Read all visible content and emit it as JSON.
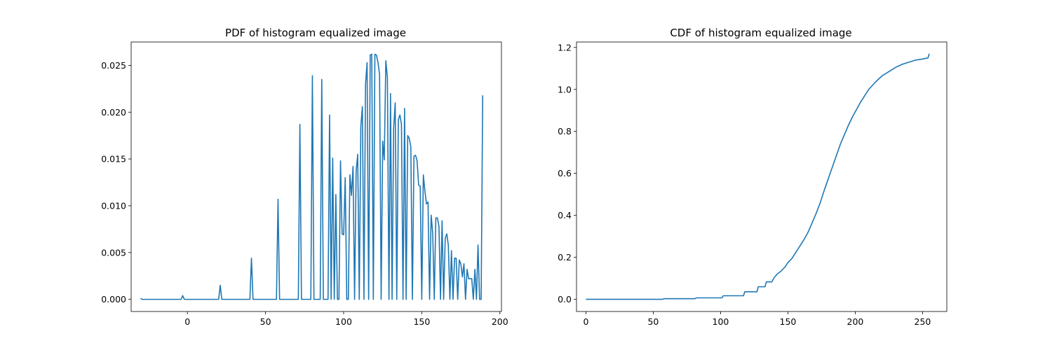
{
  "chart_data": [
    {
      "type": "line",
      "title": "PDF of histogram equalized image",
      "xlabel": "",
      "ylabel": "",
      "xlim": [
        -36,
        201
      ],
      "ylim": [
        -0.0013,
        0.0275
      ],
      "xticks": [
        0,
        50,
        100,
        150,
        200
      ],
      "xtick_labels": [
        "0",
        "50",
        "100",
        "150",
        "200"
      ],
      "yticks": [
        0.0,
        0.005,
        0.01,
        0.015,
        0.02,
        0.025
      ],
      "ytick_labels": [
        "0.000",
        "0.005",
        "0.010",
        "0.015",
        "0.020",
        "0.025"
      ],
      "grid": false,
      "color": "#1f77b4",
      "series": [
        {
          "points": [
            [
              -30,
              0.0001
            ],
            [
              -29,
              0.0
            ],
            [
              -4,
              0.0
            ],
            [
              -3,
              0.0004
            ],
            [
              -2,
              0.0
            ],
            [
              20,
              0.0
            ],
            [
              21,
              0.0015
            ],
            [
              22,
              0.0
            ],
            [
              40,
              0.0
            ],
            [
              41,
              0.0044
            ],
            [
              42,
              0.0
            ],
            [
              57,
              0.0
            ],
            [
              58,
              0.0107
            ],
            [
              59,
              0.0
            ],
            [
              71,
              0.0
            ],
            [
              72,
              0.0187
            ],
            [
              73,
              0.0
            ],
            [
              79,
              0.0
            ],
            [
              80,
              0.0239
            ],
            [
              81,
              0.0
            ],
            [
              85,
              0.0
            ],
            [
              86,
              0.0235
            ],
            [
              87,
              0.0
            ],
            [
              90,
              0.0
            ],
            [
              91,
              0.0197
            ],
            [
              92,
              0.0
            ],
            [
              93,
              0.0151
            ],
            [
              94,
              0.0
            ],
            [
              95,
              0.0112
            ],
            [
              96,
              0.0
            ],
            [
              97,
              0.0
            ],
            [
              98,
              0.0148
            ],
            [
              99,
              0.007
            ],
            [
              100,
              0.0069
            ],
            [
              101,
              0.013
            ],
            [
              102,
              0.0
            ],
            [
              103,
              0.0
            ],
            [
              104,
              0.0133
            ],
            [
              105,
              0.0111
            ],
            [
              106,
              0.0142
            ],
            [
              107,
              0.0
            ],
            [
              108,
              0.0137
            ],
            [
              109,
              0.0155
            ],
            [
              110,
              0.0
            ],
            [
              111,
              0.0185
            ],
            [
              112,
              0.0206
            ],
            [
              113,
              0.0
            ],
            [
              114,
              0.023
            ],
            [
              115,
              0.0253
            ],
            [
              116,
              0.0
            ],
            [
              117,
              0.0261
            ],
            [
              118,
              0.0262
            ],
            [
              119,
              0.0
            ],
            [
              120,
              0.0262
            ],
            [
              121,
              0.0261
            ],
            [
              122,
              0.0253
            ],
            [
              123,
              0.024
            ],
            [
              124,
              0.0
            ],
            [
              125,
              0.0169
            ],
            [
              126,
              0.0149
            ],
            [
              127,
              0.0255
            ],
            [
              128,
              0.0237
            ],
            [
              129,
              0.0
            ],
            [
              130,
              0.022
            ],
            [
              131,
              0.0
            ],
            [
              132,
              0.0183
            ],
            [
              133,
              0.021
            ],
            [
              134,
              0.0
            ],
            [
              135,
              0.0192
            ],
            [
              136,
              0.0197
            ],
            [
              137,
              0.0187
            ],
            [
              138,
              0.0
            ],
            [
              139,
              0.0204
            ],
            [
              140,
              0.0
            ],
            [
              141,
              0.0175
            ],
            [
              142,
              0.0172
            ],
            [
              143,
              0.0163
            ],
            [
              144,
              0.0
            ],
            [
              145,
              0.0153
            ],
            [
              146,
              0.0154
            ],
            [
              147,
              0.0148
            ],
            [
              148,
              0.0122
            ],
            [
              149,
              0.0121
            ],
            [
              150,
              0.0
            ],
            [
              151,
              0.0133
            ],
            [
              152,
              0.0116
            ],
            [
              153,
              0.0102
            ],
            [
              154,
              0.0104
            ],
            [
              155,
              0.0
            ],
            [
              156,
              0.009
            ],
            [
              157,
              0.0071
            ],
            [
              158,
              0.0
            ],
            [
              159,
              0.0087
            ],
            [
              160,
              0.0087
            ],
            [
              161,
              0.0078
            ],
            [
              162,
              0.0
            ],
            [
              163,
              0.0084
            ],
            [
              164,
              0.0
            ],
            [
              165,
              0.0065
            ],
            [
              166,
              0.007
            ],
            [
              167,
              0.0058
            ],
            [
              168,
              0.0
            ],
            [
              169,
              0.0052
            ],
            [
              170,
              0.0
            ],
            [
              171,
              0.0044
            ],
            [
              172,
              0.0044
            ],
            [
              173,
              0.0
            ],
            [
              174,
              0.0042
            ],
            [
              175,
              0.0038
            ],
            [
              176,
              0.0024
            ],
            [
              177,
              0.0038
            ],
            [
              178,
              0.0
            ],
            [
              179,
              0.0032
            ],
            [
              180,
              0.0022
            ],
            [
              181,
              0.0022
            ],
            [
              182,
              0.0022
            ],
            [
              183,
              0.0
            ],
            [
              184,
              0.0032
            ],
            [
              185,
              0.0
            ],
            [
              186,
              0.0058
            ],
            [
              187,
              0.0
            ],
            [
              188,
              0.0
            ],
            [
              189,
              0.0218
            ]
          ]
        }
      ]
    },
    {
      "type": "line",
      "title": "CDF of histogram equalized image",
      "xlabel": "",
      "ylabel": "",
      "xlim": [
        -7,
        268
      ],
      "ylim": [
        -0.058,
        1.226
      ],
      "xticks": [
        0,
        50,
        100,
        150,
        200,
        250
      ],
      "xtick_labels": [
        "0",
        "50",
        "100",
        "150",
        "200",
        "250"
      ],
      "yticks": [
        0.0,
        0.2,
        0.4,
        0.6,
        0.8,
        1.0,
        1.2
      ],
      "ytick_labels": [
        "0.0",
        "0.2",
        "0.4",
        "0.6",
        "0.8",
        "1.0",
        "1.2"
      ],
      "grid": false,
      "color": "#1f77b4",
      "series": [
        {
          "points": [
            [
              0,
              0.0
            ],
            [
              57,
              0.0
            ],
            [
              58,
              0.003
            ],
            [
              81,
              0.003
            ],
            [
              82,
              0.007
            ],
            [
              101,
              0.007
            ],
            [
              102,
              0.017
            ],
            [
              117,
              0.017
            ],
            [
              118,
              0.036
            ],
            [
              127,
              0.036
            ],
            [
              128,
              0.06
            ],
            [
              133,
              0.06
            ],
            [
              134,
              0.083
            ],
            [
              138,
              0.083
            ],
            [
              140,
              0.105
            ],
            [
              142,
              0.12
            ],
            [
              145,
              0.135
            ],
            [
              148,
              0.155
            ],
            [
              150,
              0.175
            ],
            [
              153,
              0.195
            ],
            [
              156,
              0.225
            ],
            [
              159,
              0.255
            ],
            [
              162,
              0.285
            ],
            [
              165,
              0.32
            ],
            [
              168,
              0.365
            ],
            [
              171,
              0.41
            ],
            [
              174,
              0.46
            ],
            [
              177,
              0.52
            ],
            [
              180,
              0.575
            ],
            [
              183,
              0.63
            ],
            [
              186,
              0.685
            ],
            [
              189,
              0.74
            ],
            [
              192,
              0.785
            ],
            [
              195,
              0.83
            ],
            [
              198,
              0.87
            ],
            [
              201,
              0.905
            ],
            [
              204,
              0.94
            ],
            [
              207,
              0.97
            ],
            [
              210,
              1.0
            ],
            [
              215,
              1.035
            ],
            [
              220,
              1.065
            ],
            [
              225,
              1.085
            ],
            [
              230,
              1.105
            ],
            [
              235,
              1.12
            ],
            [
              240,
              1.13
            ],
            [
              245,
              1.14
            ],
            [
              250,
              1.145
            ],
            [
              254,
              1.15
            ],
            [
              255,
              1.17
            ]
          ]
        }
      ]
    }
  ]
}
